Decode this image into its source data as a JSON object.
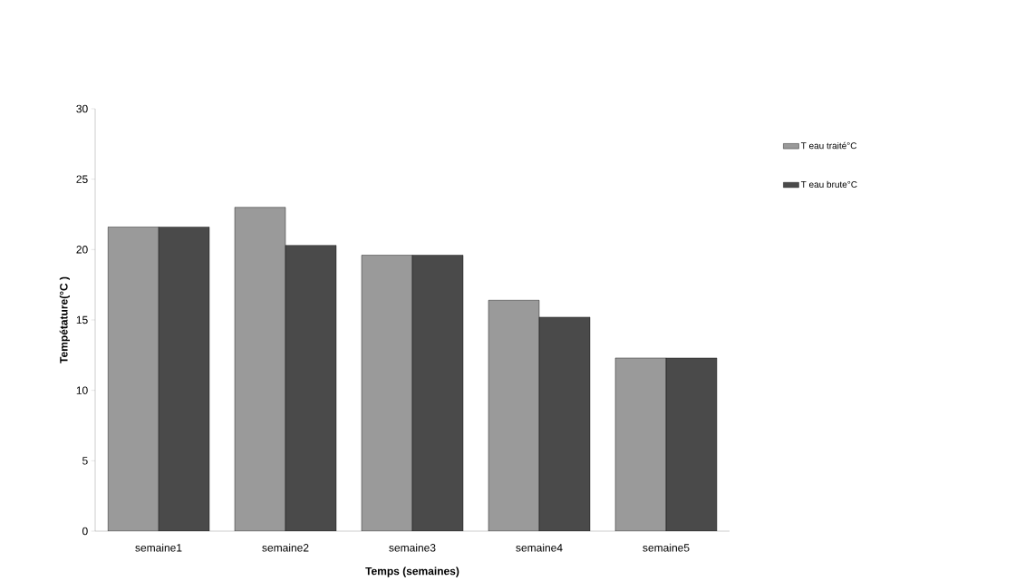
{
  "chart_data": {
    "type": "bar",
    "xlabel": "Temps (semaines)",
    "ylabel": "Tempétature(°C )",
    "categories": [
      "semaine1",
      "semaine2",
      "semaine3",
      "semaine4",
      "semaine5"
    ],
    "series": [
      {
        "name": "T eau traité°C",
        "color": "#9a9a9a",
        "values": [
          21.6,
          23,
          19.6,
          16.4,
          12.3
        ]
      },
      {
        "name": "T eau brute°C",
        "color": "#4a4a4a",
        "values": [
          21.6,
          20.3,
          19.6,
          15.2,
          12.3
        ]
      }
    ],
    "ylim": [
      0,
      30
    ],
    "yticks": [
      0,
      5,
      10,
      15,
      20,
      25,
      30
    ],
    "legend": "top right"
  }
}
